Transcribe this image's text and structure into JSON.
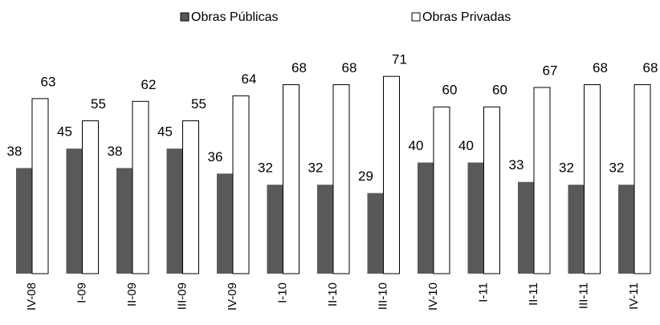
{
  "chart_data": {
    "type": "bar",
    "categories": [
      "IV-08",
      "I-09",
      "II-09",
      "III-09",
      "IV-09",
      "I-10",
      "II-10",
      "III-10",
      "IV-10",
      "I-11",
      "II-11",
      "III-11",
      "IV-11"
    ],
    "series": [
      {
        "name": "Obras Públicas",
        "color": "#595959",
        "values": [
          38,
          45,
          38,
          45,
          36,
          32,
          32,
          29,
          40,
          40,
          33,
          32,
          32
        ]
      },
      {
        "name": "Obras Privadas",
        "color": "#ffffff",
        "values": [
          63,
          55,
          62,
          55,
          64,
          68,
          68,
          71,
          60,
          60,
          67,
          68,
          68
        ]
      }
    ],
    "ylim": [
      0,
      80
    ],
    "legend": "top"
  }
}
